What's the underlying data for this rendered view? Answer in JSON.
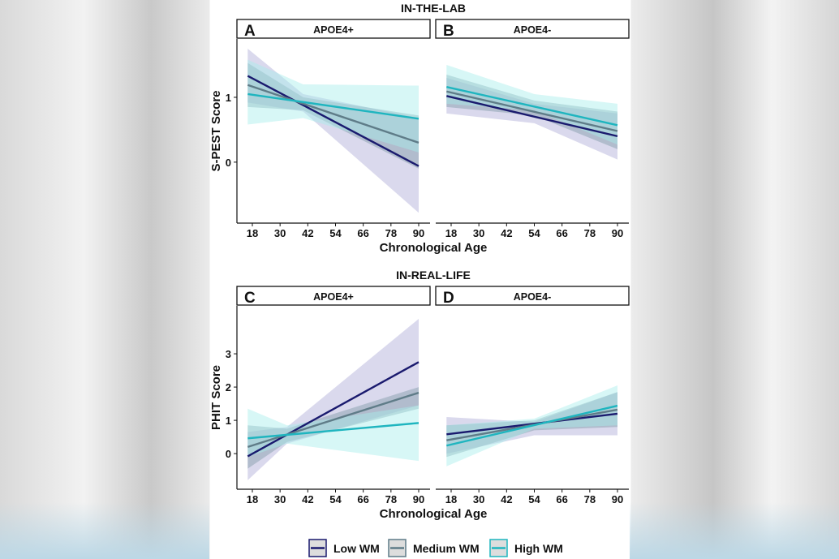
{
  "chart_data": [
    {
      "type": "line",
      "panel_letter": "A",
      "strip": "APOE4+",
      "section_title": "IN-THE-LAB",
      "xlabel": "Chronological Age",
      "ylabel": "S-PEST Score",
      "xticks": [
        18,
        30,
        42,
        54,
        66,
        78,
        90
      ],
      "yticks": [
        0,
        1
      ],
      "xlim": [
        13,
        92
      ],
      "ylim": [
        -0.94,
        1.9
      ],
      "series": [
        {
          "name": "Low WM",
          "x": [
            16,
            90
          ],
          "y": [
            1.33,
            -0.06
          ],
          "ci_x": [
            16,
            40,
            90
          ],
          "ci_low": [
            0.92,
            0.78,
            -0.78
          ],
          "ci_high": [
            1.75,
            1.05,
            0.68
          ]
        },
        {
          "name": "Medium WM",
          "x": [
            16,
            90
          ],
          "y": [
            1.19,
            0.3
          ],
          "ci_x": [
            16,
            40,
            90
          ],
          "ci_low": [
            0.85,
            0.8,
            -0.1
          ],
          "ci_high": [
            1.53,
            1.0,
            0.72
          ]
        },
        {
          "name": "High WM",
          "x": [
            16,
            90
          ],
          "y": [
            1.05,
            0.67
          ],
          "ci_x": [
            16,
            40,
            90
          ],
          "ci_low": [
            0.58,
            0.68,
            0.15
          ],
          "ci_high": [
            1.58,
            1.2,
            1.18
          ]
        }
      ]
    },
    {
      "type": "line",
      "panel_letter": "B",
      "strip": "APOE4-",
      "xlabel": "",
      "ylabel": "",
      "xticks": [
        18,
        30,
        42,
        54,
        66,
        78,
        90
      ],
      "yticks": [],
      "xlim": [
        13,
        92
      ],
      "ylim": [
        -0.94,
        1.9
      ],
      "series": [
        {
          "name": "Low WM",
          "x": [
            16,
            90
          ],
          "y": [
            1.02,
            0.4
          ],
          "ci_x": [
            16,
            54,
            90
          ],
          "ci_low": [
            0.75,
            0.6,
            0.04
          ],
          "ci_high": [
            1.3,
            0.9,
            0.75
          ]
        },
        {
          "name": "Medium WM",
          "x": [
            16,
            90
          ],
          "y": [
            1.09,
            0.48
          ],
          "ci_x": [
            16,
            54,
            90
          ],
          "ci_low": [
            0.85,
            0.72,
            0.2
          ],
          "ci_high": [
            1.35,
            0.95,
            0.78
          ]
        },
        {
          "name": "High WM",
          "x": [
            16,
            90
          ],
          "y": [
            1.16,
            0.57
          ],
          "ci_x": [
            16,
            54,
            90
          ],
          "ci_low": [
            0.9,
            0.8,
            0.27
          ],
          "ci_high": [
            1.5,
            1.05,
            0.9
          ]
        }
      ]
    },
    {
      "type": "line",
      "panel_letter": "C",
      "strip": "APOE4+",
      "section_title": "IN-REAL-LIFE",
      "xlabel": "Chronological Age",
      "ylabel": "PHIT Score",
      "xticks": [
        18,
        30,
        42,
        54,
        66,
        78,
        90
      ],
      "yticks": [
        0,
        1,
        2,
        3
      ],
      "xlim": [
        13,
        92
      ],
      "ylim": [
        -1.07,
        4.44
      ],
      "series": [
        {
          "name": "Low WM",
          "x": [
            16,
            90
          ],
          "y": [
            -0.08,
            2.75
          ],
          "ci_x": [
            16,
            33,
            90
          ],
          "ci_low": [
            -0.8,
            0.3,
            1.45
          ],
          "ci_high": [
            0.65,
            0.8,
            4.05
          ]
        },
        {
          "name": "Medium WM",
          "x": [
            16,
            90
          ],
          "y": [
            0.2,
            1.83
          ],
          "ci_x": [
            16,
            33,
            90
          ],
          "ci_low": [
            -0.45,
            0.35,
            1.35
          ],
          "ci_high": [
            0.85,
            0.75,
            2.0
          ]
        },
        {
          "name": "High WM",
          "x": [
            16,
            90
          ],
          "y": [
            0.46,
            0.92
          ],
          "ci_x": [
            16,
            33,
            90
          ],
          "ci_low": [
            -0.1,
            0.3,
            -0.22
          ],
          "ci_high": [
            1.35,
            0.85,
            1.45
          ]
        }
      ]
    },
    {
      "type": "line",
      "panel_letter": "D",
      "strip": "APOE4-",
      "xlabel": "",
      "ylabel": "",
      "xticks": [
        18,
        30,
        42,
        54,
        66,
        78,
        90
      ],
      "yticks": [],
      "xlim": [
        13,
        92
      ],
      "ylim": [
        -1.07,
        4.44
      ],
      "series": [
        {
          "name": "Low WM",
          "x": [
            16,
            90
          ],
          "y": [
            0.58,
            1.2
          ],
          "ci_x": [
            16,
            54,
            90
          ],
          "ci_low": [
            0.0,
            0.55,
            0.55
          ],
          "ci_high": [
            1.1,
            0.95,
            1.85
          ]
        },
        {
          "name": "Medium WM",
          "x": [
            16,
            90
          ],
          "y": [
            0.4,
            1.32
          ],
          "ci_x": [
            16,
            54,
            90
          ],
          "ci_low": [
            -0.1,
            0.7,
            0.8
          ],
          "ci_high": [
            0.85,
            1.0,
            1.85
          ]
        },
        {
          "name": "High WM",
          "x": [
            16,
            90
          ],
          "y": [
            0.24,
            1.44
          ],
          "ci_x": [
            16,
            54,
            90
          ],
          "ci_low": [
            -0.38,
            0.75,
            0.85
          ],
          "ci_high": [
            0.85,
            1.05,
            2.05
          ]
        }
      ]
    }
  ],
  "legend": {
    "position": "bottom",
    "items": [
      "Low WM",
      "Medium WM",
      "High WM"
    ]
  },
  "colors": {
    "Low WM": "#1a1a6e",
    "Medium WM": "#5f7c88",
    "High WM": "#1fb5bf",
    "band_Low WM": "#aeaad6",
    "band_Medium WM": "#7e9aa6",
    "band_High WM": "#a6eeea"
  }
}
